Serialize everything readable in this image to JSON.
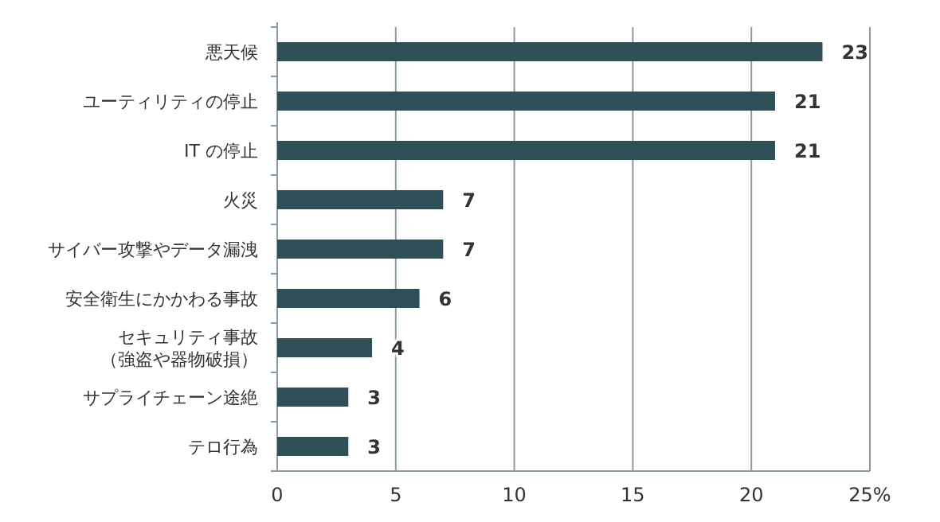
{
  "chart_data": {
    "type": "bar",
    "orientation": "horizontal",
    "categories": [
      "悪天候",
      "ユーティリティの停止",
      "IT の停止",
      "火災",
      "サイバー攻撃やデータ漏洩",
      "安全衛生にかかわる事故",
      "セキュリティ事故（強盗や器物破損）",
      "サプライチェーン途絶",
      "テロ行為"
    ],
    "values": [
      23,
      21,
      21,
      7,
      7,
      6,
      4,
      3,
      3
    ],
    "color": "#2e4f57",
    "xlim": [
      0,
      25
    ],
    "xticks": [
      0,
      5,
      10,
      15,
      20,
      {
        "value": 25,
        "label": "25%"
      }
    ],
    "grid": "x",
    "data_labels": true
  }
}
